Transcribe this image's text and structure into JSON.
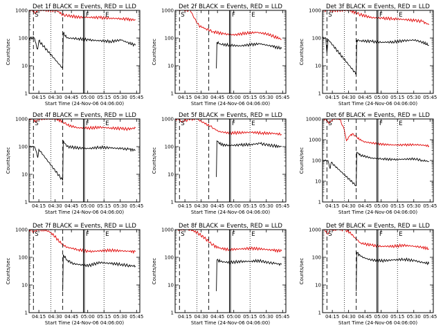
{
  "figure": {
    "ylabel": "Counts/sec",
    "xlabel": "Start Time (24-Nov-06 04:06:00)",
    "xticks": [
      "04:15",
      "04:30",
      "04:45",
      "05:00",
      "05:15",
      "05:30",
      "05:45"
    ],
    "yticks": [
      "1",
      "10",
      "100",
      "1000"
    ],
    "yticks_wide": [
      "1",
      "10",
      "100",
      "1000",
      "10000"
    ],
    "marker_labels": [
      "S",
      "F",
      "E"
    ],
    "colors": {
      "events": "#000000",
      "lld": "#e00000",
      "axis": "#000000"
    }
  },
  "chart_data": [
    {
      "type": "line",
      "title": "Det 1f BLACK = Events, RED = LLD",
      "ylim": [
        1,
        1000
      ],
      "x_unit": "minutes after 04:06:00",
      "xlim": [
        0,
        102
      ],
      "series": [
        {
          "name": "Events",
          "color": "#000000",
          "x": [
            0,
            5,
            7,
            8,
            9,
            31,
            31.5,
            35,
            45,
            55,
            65,
            75,
            85,
            90,
            98
          ],
          "y": [
            100,
            100,
            45,
            40,
            80,
            8,
            150,
            100,
            95,
            85,
            80,
            75,
            85,
            70,
            55
          ]
        },
        {
          "name": "LLD",
          "color": "#e00000",
          "x": [
            0,
            3,
            6,
            8,
            9,
            25,
            31,
            35,
            45,
            55,
            65,
            75,
            85,
            90,
            98
          ],
          "y": [
            1000,
            1000,
            800,
            1000,
            1000,
            1000,
            700,
            650,
            570,
            560,
            550,
            520,
            500,
            480,
            450
          ]
        }
      ]
    },
    {
      "type": "line",
      "title": "Det 2f BLACK = Events, RED = LLD",
      "ylim": [
        1,
        1000
      ],
      "x_unit": "minutes after 04:06:00",
      "xlim": [
        0,
        102
      ],
      "series": [
        {
          "name": "Events",
          "color": "#000000",
          "x": [
            38,
            38.5,
            42,
            50,
            60,
            70,
            78,
            85,
            90,
            98
          ],
          "y": [
            8,
            70,
            60,
            55,
            52,
            58,
            62,
            55,
            50,
            42
          ]
        },
        {
          "name": "LLD",
          "color": "#e00000",
          "x": [
            2,
            5,
            7,
            10,
            14,
            18,
            22,
            28,
            35,
            45,
            55,
            65,
            75,
            85,
            92,
            98
          ],
          "y": [
            1000,
            1000,
            1000,
            1000,
            1000,
            500,
            280,
            220,
            170,
            140,
            130,
            150,
            160,
            140,
            110,
            90
          ]
        }
      ]
    },
    {
      "type": "line",
      "title": "Det 3f BLACK = Events, RED = LLD",
      "ylim": [
        1,
        1000
      ],
      "x_unit": "minutes after 04:06:00",
      "xlim": [
        0,
        102
      ],
      "series": [
        {
          "name": "Events",
          "color": "#000000",
          "x": [
            0,
            3,
            4,
            5,
            31,
            31.5,
            35,
            45,
            55,
            65,
            75,
            85,
            92,
            98
          ],
          "y": [
            100,
            100,
            30,
            90,
            5,
            85,
            80,
            75,
            70,
            72,
            80,
            85,
            70,
            55
          ]
        },
        {
          "name": "LLD",
          "color": "#e00000",
          "x": [
            0,
            3,
            5,
            25,
            31,
            35,
            45,
            55,
            65,
            75,
            85,
            92,
            98
          ],
          "y": [
            1000,
            1000,
            1000,
            1000,
            800,
            700,
            550,
            520,
            500,
            470,
            430,
            400,
            300
          ]
        }
      ]
    },
    {
      "type": "line",
      "title": "Det 4f BLACK = Events, RED = LLD",
      "ylim": [
        1,
        1000
      ],
      "x_unit": "minutes after 04:06:00",
      "xlim": [
        0,
        102
      ],
      "series": [
        {
          "name": "Events",
          "color": "#000000",
          "x": [
            0,
            5,
            7,
            8,
            9,
            31,
            31.5,
            35,
            45,
            55,
            65,
            75,
            85,
            92,
            98
          ],
          "y": [
            100,
            100,
            60,
            40,
            80,
            6,
            160,
            100,
            90,
            85,
            95,
            90,
            85,
            80,
            75
          ]
        },
        {
          "name": "LLD",
          "color": "#e00000",
          "x": [
            0,
            3,
            6,
            8,
            25,
            31,
            35,
            45,
            55,
            65,
            75,
            85,
            92,
            98
          ],
          "y": [
            1000,
            1000,
            800,
            1000,
            1000,
            800,
            600,
            480,
            470,
            500,
            470,
            450,
            430,
            480
          ]
        }
      ]
    },
    {
      "type": "line",
      "title": "Det 5f BLACK = Events, RED = LLD",
      "ylim": [
        1,
        1000
      ],
      "x_unit": "minutes after 04:06:00",
      "xlim": [
        0,
        102
      ],
      "series": [
        {
          "name": "Events",
          "color": "#000000",
          "x": [
            38,
            38.5,
            42,
            50,
            60,
            70,
            78,
            85,
            92,
            98
          ],
          "y": [
            8,
            160,
            120,
            110,
            115,
            120,
            130,
            115,
            105,
            100
          ]
        },
        {
          "name": "LLD",
          "color": "#e00000",
          "x": [
            0,
            3,
            6,
            10,
            14,
            20,
            27,
            32,
            36,
            40,
            50,
            60,
            70,
            80,
            90,
            98
          ],
          "y": [
            1000,
            1000,
            800,
            900,
            1000,
            1000,
            700,
            550,
            450,
            350,
            310,
            320,
            330,
            310,
            300,
            280
          ]
        }
      ]
    },
    {
      "type": "line",
      "title": "Det 6f BLACK = Events, RED = LLD",
      "ylim": [
        1,
        10000
      ],
      "x_unit": "minutes after 04:06:00",
      "xlim": [
        0,
        102
      ],
      "series": [
        {
          "name": "Events",
          "color": "#000000",
          "x": [
            0,
            5,
            7,
            8,
            31,
            31.5,
            35,
            45,
            55,
            65,
            75,
            85,
            92,
            98
          ],
          "y": [
            100,
            100,
            40,
            80,
            6,
            250,
            180,
            130,
            120,
            110,
            115,
            120,
            100,
            90
          ]
        },
        {
          "name": "LLD",
          "color": "#e00000",
          "x": [
            0,
            3,
            6,
            8,
            10,
            16,
            20,
            22,
            25,
            28,
            32,
            38,
            45,
            55,
            65,
            75,
            85,
            92,
            98
          ],
          "y": [
            10000,
            10000,
            6000,
            8000,
            10000,
            10000,
            3000,
            900,
            1500,
            2000,
            1200,
            800,
            700,
            600,
            560,
            560,
            580,
            550,
            500
          ]
        }
      ]
    },
    {
      "type": "line",
      "title": "Det 7f BLACK = Events, RED = LLD",
      "ylim": [
        1,
        1000
      ],
      "x_unit": "minutes after 04:06:00",
      "xlim": [
        0,
        102
      ],
      "series": [
        {
          "name": "Events",
          "color": "#000000",
          "x": [
            31,
            31.5,
            35,
            40,
            45,
            55,
            65,
            75,
            85,
            92,
            98
          ],
          "y": [
            6,
            120,
            80,
            60,
            55,
            50,
            65,
            60,
            55,
            50,
            48
          ]
        },
        {
          "name": "LLD",
          "color": "#e00000",
          "x": [
            0,
            2,
            4,
            8,
            14,
            20,
            25,
            30,
            35,
            45,
            55,
            65,
            75,
            85,
            92,
            98
          ],
          "y": [
            1000,
            1000,
            800,
            1000,
            1000,
            800,
            500,
            300,
            230,
            190,
            160,
            170,
            180,
            170,
            165,
            160
          ]
        }
      ]
    },
    {
      "type": "line",
      "title": "Det 8f BLACK = Events, RED = LLD",
      "ylim": [
        1,
        1000
      ],
      "x_unit": "minutes after 04:06:00",
      "xlim": [
        0,
        102
      ],
      "series": [
        {
          "name": "Events",
          "color": "#000000",
          "x": [
            38,
            38.5,
            42,
            50,
            60,
            70,
            78,
            85,
            92,
            98
          ],
          "y": [
            6,
            80,
            70,
            65,
            70,
            72,
            75,
            65,
            60,
            55
          ]
        },
        {
          "name": "LLD",
          "color": "#e00000",
          "x": [
            2,
            5,
            10,
            14,
            20,
            27,
            32,
            36,
            42,
            50,
            60,
            70,
            80,
            90,
            98
          ],
          "y": [
            1000,
            1000,
            1000,
            1000,
            800,
            500,
            350,
            260,
            210,
            190,
            200,
            210,
            200,
            180,
            170
          ]
        }
      ]
    },
    {
      "type": "line",
      "title": "Det 9f BLACK = Events, RED = LLD",
      "ylim": [
        1,
        1000
      ],
      "x_unit": "minutes after 04:06:00",
      "xlim": [
        0,
        102
      ],
      "series": [
        {
          "name": "Events",
          "color": "#000000",
          "x": [
            31,
            31.5,
            35,
            40,
            45,
            55,
            65,
            75,
            85,
            92,
            98
          ],
          "y": [
            6,
            150,
            110,
            90,
            80,
            75,
            80,
            85,
            75,
            65,
            60
          ]
        },
        {
          "name": "LLD",
          "color": "#e00000",
          "x": [
            0,
            2,
            4,
            8,
            14,
            20,
            25,
            30,
            35,
            45,
            55,
            65,
            75,
            85,
            92,
            98
          ],
          "y": [
            1000,
            1000,
            700,
            1000,
            1000,
            1000,
            800,
            500,
            330,
            270,
            250,
            250,
            270,
            250,
            230,
            200
          ]
        }
      ]
    }
  ]
}
